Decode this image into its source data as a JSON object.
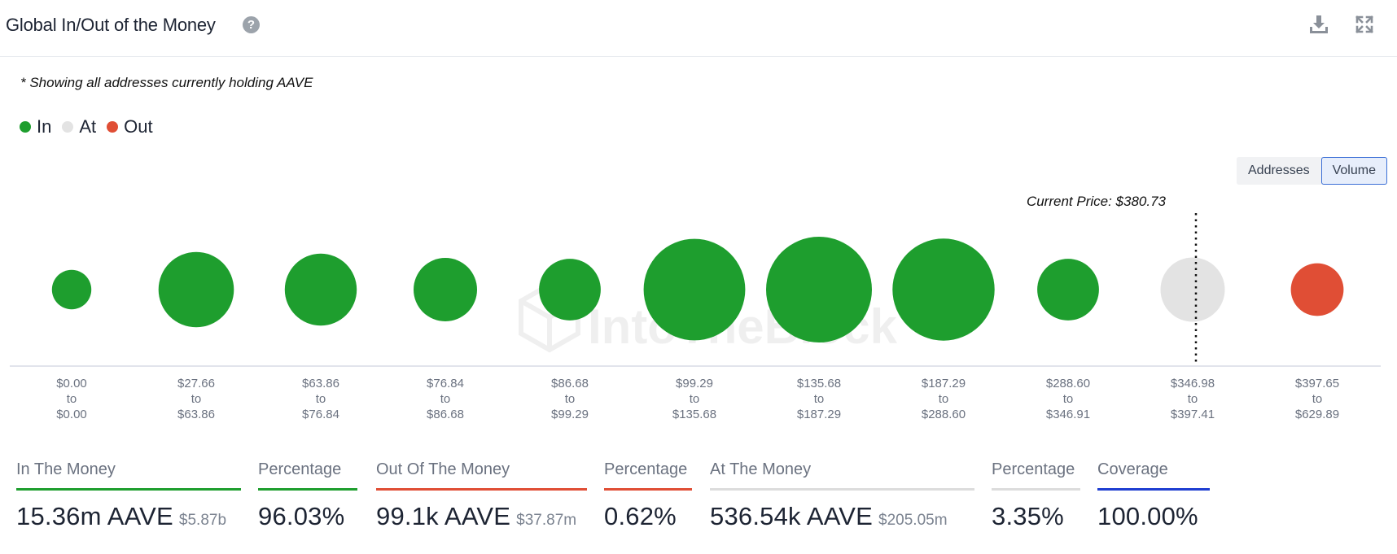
{
  "header": {
    "title": "Global In/Out of the Money",
    "help_icon": "question-circle-icon",
    "help_glyph": "?",
    "download_icon": "download-icon",
    "expand_icon": "expand-icon"
  },
  "note": "* Showing all addresses currently holding AAVE",
  "legend": [
    {
      "label": "In",
      "color": "#1e9e2e"
    },
    {
      "label": "At",
      "color": "#e3e3e3"
    },
    {
      "label": "Out",
      "color": "#e04e35"
    }
  ],
  "toggle": {
    "options": [
      "Addresses",
      "Volume"
    ],
    "selected": "Volume"
  },
  "chart_data": {
    "type": "bubble",
    "watermark": "IntoTheBlock",
    "current_price_label": "Current Price: $380.73",
    "current_price": 380.73,
    "size_metric": "Volume",
    "bins": [
      {
        "from": "$0.00",
        "to": "$0.00",
        "status": "In",
        "relative_size": 0.04
      },
      {
        "from": "$27.66",
        "to": "$63.86",
        "status": "In",
        "relative_size": 0.4
      },
      {
        "from": "$63.86",
        "to": "$76.84",
        "status": "In",
        "relative_size": 0.35
      },
      {
        "from": "$76.84",
        "to": "$86.68",
        "status": "In",
        "relative_size": 0.24
      },
      {
        "from": "$86.68",
        "to": "$99.29",
        "status": "In",
        "relative_size": 0.22
      },
      {
        "from": "$99.29",
        "to": "$135.68",
        "status": "In",
        "relative_size": 0.9
      },
      {
        "from": "$135.68",
        "to": "$187.29",
        "status": "In",
        "relative_size": 1.0
      },
      {
        "from": "$187.29",
        "to": "$288.60",
        "status": "In",
        "relative_size": 0.91
      },
      {
        "from": "$288.60",
        "to": "$346.91",
        "status": "In",
        "relative_size": 0.22
      },
      {
        "from": "$346.98",
        "to": "$397.41",
        "status": "At",
        "relative_size": 0.25
      },
      {
        "from": "$397.65",
        "to": "$629.89",
        "status": "Out",
        "relative_size": 0.13
      }
    ],
    "range_connector": "to"
  },
  "stats": [
    {
      "label": "In The Money",
      "value": "15.36m AAVE",
      "sub": "$5.87b",
      "color": "#1e9e2e"
    },
    {
      "label": "Percentage",
      "value": "96.03%",
      "sub": "",
      "color": "#1e9e2e"
    },
    {
      "label": "Out Of The Money",
      "value": "99.1k AAVE",
      "sub": "$37.87m",
      "color": "#e04e35"
    },
    {
      "label": "Percentage",
      "value": "0.62%",
      "sub": "",
      "color": "#e04e35"
    },
    {
      "label": "At The Money",
      "value": "536.54k AAVE",
      "sub": "$205.05m",
      "color": "#dcdcdc"
    },
    {
      "label": "Percentage",
      "value": "3.35%",
      "sub": "",
      "color": "#dcdcdc"
    },
    {
      "label": "Coverage",
      "value": "100.00%",
      "sub": "",
      "color": "#1f3ed1"
    }
  ]
}
